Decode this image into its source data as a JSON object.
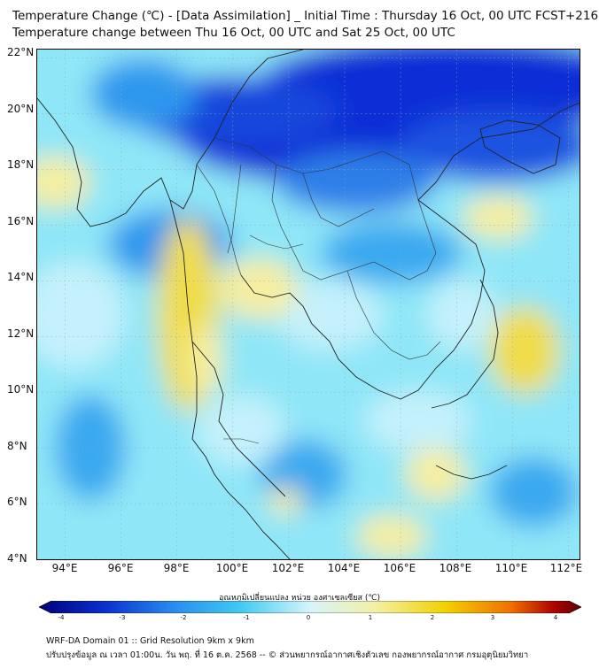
{
  "title": {
    "line1": "Temperature Change (℃) - [Data Assimilation] _ Initial Time : Thursday 16 Oct, 00 UTC FCST+216",
    "line2": "Temperature change between Thu 16 Oct, 00 UTC and Sat 25 Oct, 00 UTC"
  },
  "axes": {
    "lat_labels": [
      "22°N",
      "20°N",
      "18°N",
      "16°N",
      "14°N",
      "12°N",
      "10°N",
      "8°N",
      "6°N",
      "4°N"
    ],
    "lon_labels": [
      "94°E",
      "96°E",
      "98°E",
      "100°E",
      "102°E",
      "104°E",
      "106°E",
      "108°E",
      "110°E",
      "112°E"
    ],
    "lat_range": [
      4,
      22.3
    ],
    "lon_range": [
      93,
      112.4
    ]
  },
  "colorbar": {
    "title": "อุณหภูมิเปลี่ยนแปลง หน่วย องศาเซลเซียส (℃)",
    "ticks": [
      "-4",
      "-3",
      "-2",
      "-1",
      "0",
      "1",
      "2",
      "3",
      "4"
    ],
    "range": [
      -4,
      4
    ],
    "colors": [
      "#00007a",
      "#0a2fd0",
      "#2b8cf0",
      "#3fcaf0",
      "#d6f4fa",
      "#f3f0a6",
      "#f2d000",
      "#f07000",
      "#b00000",
      "#5a0000"
    ]
  },
  "field_colors": {
    "strong_cool": "#0b2fd6",
    "cool": "#2f97ee",
    "mild_cool": "#60d4f3",
    "near_zero": "#c4f1fb",
    "mild_warm": "#f6eea0",
    "warm": "#f0dd4a"
  },
  "footer": {
    "line1": "WRF-DA Domain 01 :: Grid Resolution 9km x 9km",
    "line2": "ปรับปรุงข้อมูล ณ เวลา 01:00น. วัน พฤ. ที่ 16 ต.ค. 2568 -- © ส่วนพยากรณ์อากาศเชิงตัวเลข กองพยากรณ์อากาศ กรมอุตุนิยมวิทยา"
  }
}
